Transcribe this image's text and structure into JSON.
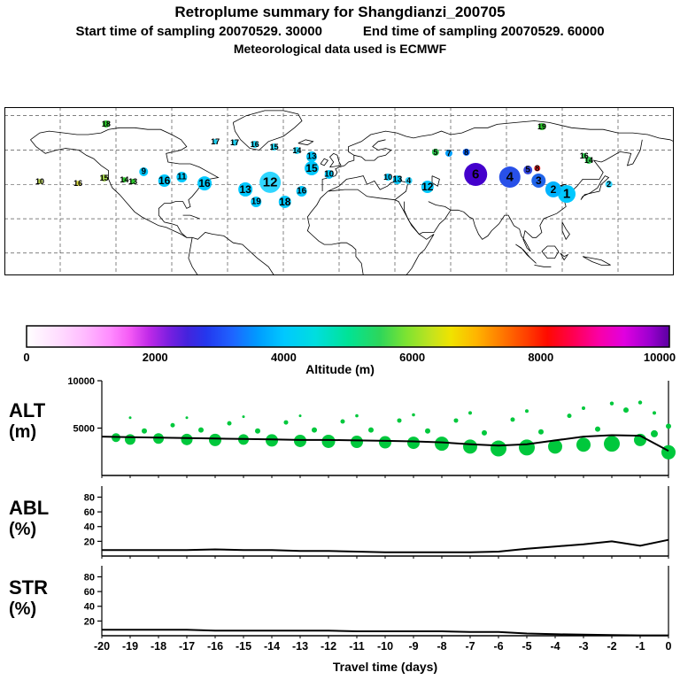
{
  "header": {
    "title": "Retroplume summary for Shangdianzi_200705",
    "start_text": "Start time of sampling 20070529. 30000",
    "end_text": "End time of sampling 20070529. 60000",
    "met_text": "Meteorological data used is ECMWF"
  },
  "colorbar": {
    "title": "Altitude (m)",
    "ticks": [
      "0",
      "2000",
      "4000",
      "6000",
      "8000",
      "10000"
    ],
    "gradient_stops": [
      [
        0,
        "#ffffff"
      ],
      [
        0.05,
        "#ffddff"
      ],
      [
        0.09,
        "#ffbbff"
      ],
      [
        0.13,
        "#ff8cff"
      ],
      [
        0.16,
        "#f55bf5"
      ],
      [
        0.19,
        "#c02ae8"
      ],
      [
        0.22,
        "#7d1fe0"
      ],
      [
        0.25,
        "#4423dd"
      ],
      [
        0.28,
        "#2438ee"
      ],
      [
        0.32,
        "#1e64ff"
      ],
      [
        0.36,
        "#009cff"
      ],
      [
        0.4,
        "#00c8ff"
      ],
      [
        0.45,
        "#00dede"
      ],
      [
        0.5,
        "#00e396"
      ],
      [
        0.55,
        "#2ed65a"
      ],
      [
        0.59,
        "#7ce332"
      ],
      [
        0.63,
        "#c3e31e"
      ],
      [
        0.66,
        "#f0e300"
      ],
      [
        0.7,
        "#ffb400"
      ],
      [
        0.74,
        "#ff7800"
      ],
      [
        0.78,
        "#ff3c00"
      ],
      [
        0.81,
        "#ff0a00"
      ],
      [
        0.85,
        "#ff0050"
      ],
      [
        0.89,
        "#fa00a5"
      ],
      [
        0.93,
        "#e000e0"
      ],
      [
        0.97,
        "#9b00cf"
      ],
      [
        1,
        "#5a00a0"
      ]
    ]
  },
  "panels": {
    "alt": {
      "name": "ALT",
      "unit": "(m)",
      "ymax": 10000,
      "bubble_color": "#00c83c",
      "yticks": [
        {
          "v": 10000,
          "label": "10000"
        },
        {
          "v": 5000,
          "label": "5000"
        }
      ]
    },
    "abl": {
      "name": "ABL",
      "unit": "(%)",
      "ymax": 95,
      "yticks": [
        {
          "v": 80,
          "label": "80"
        },
        {
          "v": 60,
          "label": "60"
        },
        {
          "v": 40,
          "label": "40"
        },
        {
          "v": 20,
          "label": "20"
        }
      ]
    },
    "str": {
      "name": "STR",
      "unit": "(%)",
      "ymax": 95,
      "yticks": [
        {
          "v": 80,
          "label": "80"
        },
        {
          "v": 60,
          "label": "60"
        },
        {
          "v": 40,
          "label": "40"
        },
        {
          "v": 20,
          "label": "20"
        }
      ]
    }
  },
  "xaxis": {
    "label": "Travel time (days)",
    "ticks": [
      -20,
      -19,
      -18,
      -17,
      -16,
      -15,
      -14,
      -13,
      -12,
      -11,
      -10,
      -9,
      -8,
      -7,
      -6,
      -5,
      -4,
      -3,
      -2,
      -1,
      0
    ]
  },
  "chart_data": [
    {
      "id": "map-plume",
      "type": "scatter",
      "title": "Retroplume cluster positions (label = travel time in days, color = altitude per colorbar)",
      "points": [
        [
          5.3,
          44.2,
          3,
          "#b8d44a",
          "10"
        ],
        [
          11.0,
          45.3,
          3,
          "#d8d840",
          "16"
        ],
        [
          14.9,
          42.1,
          4,
          "#9fce4a",
          "15"
        ],
        [
          15.2,
          10.0,
          4,
          "#2ec82e",
          "18"
        ],
        [
          17.9,
          43.2,
          3,
          "#2ec82e",
          "14"
        ],
        [
          19.2,
          44.2,
          3,
          "#2ec82e",
          "13"
        ],
        [
          20.8,
          38.4,
          5,
          "#00c8ff",
          "9"
        ],
        [
          23.9,
          43.7,
          7,
          "#00c8ff",
          "16"
        ],
        [
          26.5,
          41.6,
          6,
          "#00c8ff",
          "11"
        ],
        [
          29.9,
          45.3,
          8,
          "#00c8ff",
          "16"
        ],
        [
          36.0,
          48.9,
          8,
          "#00c8ff",
          "13"
        ],
        [
          37.6,
          56.3,
          6,
          "#00c8ff",
          "19"
        ],
        [
          39.7,
          44.7,
          12,
          "#30d6ff",
          "12"
        ],
        [
          41.9,
          56.3,
          7,
          "#00c8ff",
          "18"
        ],
        [
          44.4,
          50.0,
          6,
          "#00c8ff",
          "16"
        ],
        [
          45.9,
          36.3,
          8,
          "#00c8ff",
          "15"
        ],
        [
          45.9,
          29.5,
          6,
          "#00c8ff",
          "13"
        ],
        [
          43.7,
          25.8,
          4,
          "#20d0f0",
          "14"
        ],
        [
          40.3,
          23.7,
          4,
          "#20d0f0",
          "15"
        ],
        [
          37.4,
          22.1,
          4,
          "#20d0f0",
          "16"
        ],
        [
          34.4,
          21.1,
          3.5,
          "#20d0f0",
          "17"
        ],
        [
          31.5,
          20.5,
          3,
          "#20d0f0",
          "17"
        ],
        [
          48.5,
          40.0,
          5,
          "#00c8ff",
          "10"
        ],
        [
          57.3,
          41.6,
          4,
          "#00c8ff",
          "10"
        ],
        [
          58.7,
          43.2,
          5,
          "#00c8ff",
          "13"
        ],
        [
          60.4,
          43.7,
          4,
          "#30d6ff",
          "4"
        ],
        [
          63.2,
          47.4,
          7,
          "#00c8ff",
          "12"
        ],
        [
          64.4,
          26.8,
          4,
          "#2ec84e",
          "5"
        ],
        [
          66.4,
          27.4,
          4,
          "#00a0ff",
          "7"
        ],
        [
          69.0,
          26.8,
          4,
          "#0064ff",
          "8"
        ],
        [
          70.4,
          40.0,
          13,
          "#4400cc",
          "6"
        ],
        [
          75.5,
          41.6,
          12,
          "#2850e8",
          "4"
        ],
        [
          78.2,
          37.4,
          5,
          "#3346dd",
          "5"
        ],
        [
          79.6,
          36.3,
          3.5,
          "#e82020",
          "8"
        ],
        [
          79.8,
          43.7,
          8,
          "#2064e8",
          "3"
        ],
        [
          82.0,
          48.9,
          9,
          "#00b4ff",
          "2"
        ],
        [
          84.0,
          51.6,
          10,
          "#00c8ff",
          "1"
        ],
        [
          87.3,
          31.6,
          4,
          "#2ec84e",
          "14"
        ],
        [
          80.3,
          11.6,
          4,
          "#2ec82e",
          "19"
        ],
        [
          86.6,
          28.9,
          3,
          "#2ec84e",
          "16"
        ],
        [
          90.3,
          45.8,
          4,
          "#30d6ff",
          "2"
        ]
      ]
    },
    {
      "id": "alt",
      "type": "scatter+line",
      "ylabel": "ALT (m)",
      "ylim": [
        0,
        10000
      ],
      "x": [
        -20,
        -19,
        -18,
        -17,
        -16,
        -15,
        -14,
        -13,
        -12,
        -11,
        -10,
        -9,
        -8,
        -7,
        -6,
        -5,
        -4,
        -3,
        -2,
        -1,
        0
      ],
      "line": [
        4100,
        4050,
        4000,
        3950,
        3900,
        3850,
        3800,
        3750,
        3750,
        3700,
        3650,
        3600,
        3500,
        3300,
        3150,
        3300,
        3700,
        4100,
        4250,
        4200,
        2600
      ],
      "bubbles": [
        [
          -19.5,
          4000,
          5
        ],
        [
          -19,
          3800,
          6
        ],
        [
          -19,
          6100,
          1.5
        ],
        [
          -18.5,
          4700,
          3
        ],
        [
          -18,
          3900,
          6
        ],
        [
          -17.5,
          5300,
          2.5
        ],
        [
          -17,
          3800,
          6.5
        ],
        [
          -17,
          6100,
          1.5
        ],
        [
          -16.5,
          4800,
          3
        ],
        [
          -16,
          3750,
          7
        ],
        [
          -15.5,
          5500,
          2.5
        ],
        [
          -15,
          3800,
          6
        ],
        [
          -15,
          6200,
          1.5
        ],
        [
          -14.5,
          4700,
          3
        ],
        [
          -14,
          3700,
          7
        ],
        [
          -13.5,
          5600,
          2.5
        ],
        [
          -13,
          3650,
          7
        ],
        [
          -13,
          6300,
          1.5
        ],
        [
          -12.5,
          4800,
          3
        ],
        [
          -12,
          3600,
          7.5
        ],
        [
          -11.5,
          5700,
          2.5
        ],
        [
          -11,
          3550,
          7
        ],
        [
          -11,
          6300,
          1.8
        ],
        [
          -10.5,
          4800,
          3
        ],
        [
          -10,
          3500,
          7
        ],
        [
          -9.5,
          5800,
          2.5
        ],
        [
          -9,
          3450,
          7
        ],
        [
          -9,
          6400,
          1.8
        ],
        [
          -8.5,
          4700,
          3
        ],
        [
          -8,
          3350,
          8
        ],
        [
          -7.5,
          5800,
          2.5
        ],
        [
          -7,
          3050,
          8
        ],
        [
          -7,
          6600,
          2
        ],
        [
          -6.5,
          4500,
          3
        ],
        [
          -6,
          2850,
          9
        ],
        [
          -5.5,
          5900,
          2.5
        ],
        [
          -5,
          2950,
          9
        ],
        [
          -5,
          6800,
          2
        ],
        [
          -4.5,
          4600,
          3
        ],
        [
          -4,
          3050,
          8
        ],
        [
          -3.5,
          6300,
          2.5
        ],
        [
          -3,
          3250,
          8
        ],
        [
          -3,
          7100,
          2
        ],
        [
          -2.5,
          4900,
          3
        ],
        [
          -2,
          3350,
          9
        ],
        [
          -2,
          7600,
          2.2
        ],
        [
          -1.5,
          6900,
          3
        ],
        [
          -1,
          3750,
          7
        ],
        [
          -1,
          7700,
          2.2
        ],
        [
          -0.5,
          4400,
          4
        ],
        [
          -0.5,
          6600,
          2
        ],
        [
          0,
          2450,
          8
        ],
        [
          0,
          5200,
          3
        ]
      ]
    },
    {
      "id": "abl",
      "type": "line",
      "ylabel": "ABL (%)",
      "ylim": [
        0,
        95
      ],
      "x": [
        -20,
        -19,
        -18,
        -17,
        -16,
        -15,
        -14,
        -13,
        -12,
        -11,
        -10,
        -9,
        -8,
        -7,
        -6,
        -5,
        -4,
        -3,
        -2,
        -1,
        0
      ],
      "line": [
        8,
        8,
        8,
        8,
        9,
        8,
        8,
        7,
        7,
        6,
        5,
        5,
        5,
        5,
        6,
        10,
        13,
        16,
        20,
        14,
        22
      ]
    },
    {
      "id": "str",
      "type": "line",
      "ylabel": "STR (%)",
      "ylim": [
        0,
        95
      ],
      "x": [
        -20,
        -19,
        -18,
        -17,
        -16,
        -15,
        -14,
        -13,
        -12,
        -11,
        -10,
        -9,
        -8,
        -7,
        -6,
        -5,
        -4,
        -3,
        -2,
        -1,
        0
      ],
      "line": [
        8,
        8,
        8,
        8,
        7,
        7,
        7,
        7,
        7,
        6,
        6,
        6,
        6,
        5,
        5,
        3,
        2,
        1.5,
        1,
        0.5,
        0.5
      ]
    }
  ]
}
